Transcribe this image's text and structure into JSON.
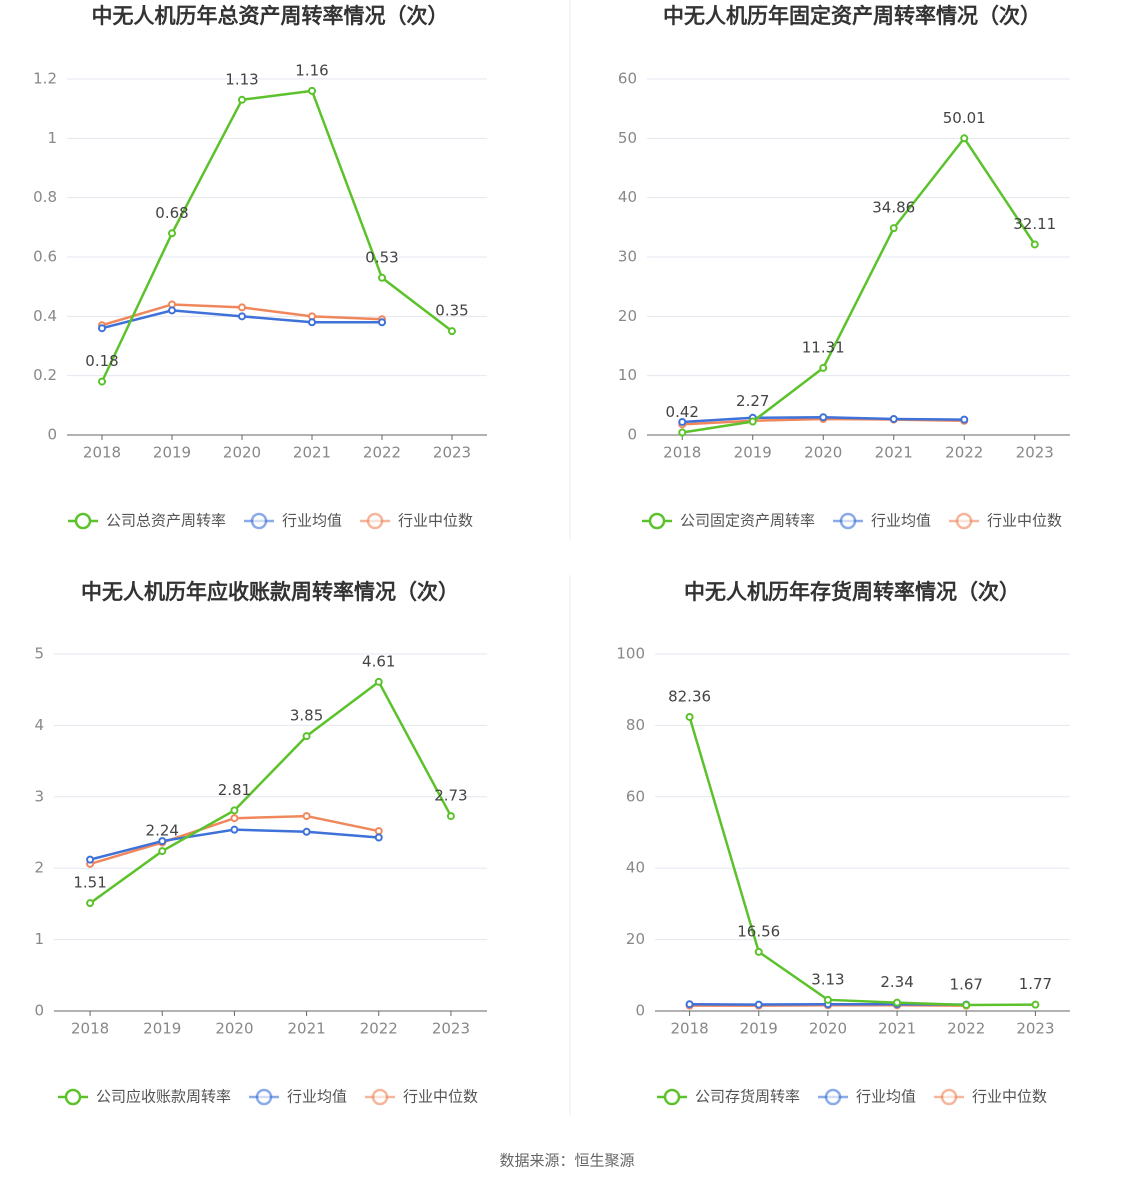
{
  "chart_data": [
    {
      "type": "line",
      "title": "中无人机历年总资产周转率情况（次）",
      "categories": [
        "2018",
        "2019",
        "2020",
        "2021",
        "2022",
        "2023"
      ],
      "series": [
        {
          "name": "公司总资产周转率",
          "color": "#5cc22c",
          "values": [
            0.18,
            0.68,
            1.13,
            1.16,
            0.53,
            0.35
          ]
        },
        {
          "name": "行业均值",
          "color": "#3f72d9",
          "values": [
            0.36,
            0.42,
            0.4,
            0.38,
            0.38,
            null
          ]
        },
        {
          "name": "行业中位数",
          "color": "#f0875c",
          "values": [
            0.37,
            0.44,
            0.43,
            0.4,
            0.39,
            null
          ]
        }
      ],
      "ylim": [
        0,
        1.2
      ],
      "yticks": [
        0,
        0.2,
        0.4,
        0.6,
        0.8,
        1,
        1.2
      ],
      "grid": true
    },
    {
      "type": "line",
      "title": "中无人机历年固定资产周转率情况（次）",
      "categories": [
        "2018",
        "2019",
        "2020",
        "2021",
        "2022",
        "2023"
      ],
      "series": [
        {
          "name": "公司固定资产周转率",
          "color": "#5cc22c",
          "values": [
            0.42,
            2.27,
            11.31,
            34.86,
            50.01,
            32.11
          ]
        },
        {
          "name": "行业均值",
          "color": "#3f72d9",
          "values": [
            2.2,
            2.9,
            3.0,
            2.7,
            2.6,
            null
          ]
        },
        {
          "name": "行业中位数",
          "color": "#f0875c",
          "values": [
            1.8,
            2.4,
            2.7,
            2.6,
            2.4,
            null
          ]
        }
      ],
      "ylim": [
        0,
        60
      ],
      "yticks": [
        0,
        10,
        20,
        30,
        40,
        50,
        60
      ],
      "grid": true
    },
    {
      "type": "line",
      "title": "中无人机历年应收账款周转率情况（次）",
      "categories": [
        "2018",
        "2019",
        "2020",
        "2021",
        "2022",
        "2023"
      ],
      "series": [
        {
          "name": "公司应收账款周转率",
          "color": "#5cc22c",
          "values": [
            1.51,
            2.24,
            2.81,
            3.85,
            4.61,
            2.73
          ]
        },
        {
          "name": "行业均值",
          "color": "#3f72d9",
          "values": [
            2.12,
            2.38,
            2.54,
            2.51,
            2.43,
            null
          ]
        },
        {
          "name": "行业中位数",
          "color": "#f0875c",
          "values": [
            2.06,
            2.36,
            2.7,
            2.73,
            2.52,
            null
          ]
        }
      ],
      "ylim": [
        0,
        5
      ],
      "yticks": [
        0,
        1,
        2,
        3,
        4,
        5
      ],
      "grid": true
    },
    {
      "type": "line",
      "title": "中无人机历年存货周转率情况（次）",
      "categories": [
        "2018",
        "2019",
        "2020",
        "2021",
        "2022",
        "2023"
      ],
      "series": [
        {
          "name": "公司存货周转率",
          "color": "#5cc22c",
          "values": [
            82.36,
            16.56,
            3.13,
            2.34,
            1.67,
            1.77
          ]
        },
        {
          "name": "行业均值",
          "color": "#3f72d9",
          "values": [
            1.9,
            1.8,
            1.9,
            1.9,
            1.8,
            null
          ]
        },
        {
          "name": "行业中位数",
          "color": "#f0875c",
          "values": [
            1.5,
            1.5,
            1.6,
            1.6,
            1.5,
            null
          ]
        }
      ],
      "ylim": [
        0,
        100
      ],
      "yticks": [
        0,
        20,
        40,
        60,
        80,
        100
      ],
      "grid": true
    }
  ],
  "source": "数据来源：恒生聚源"
}
